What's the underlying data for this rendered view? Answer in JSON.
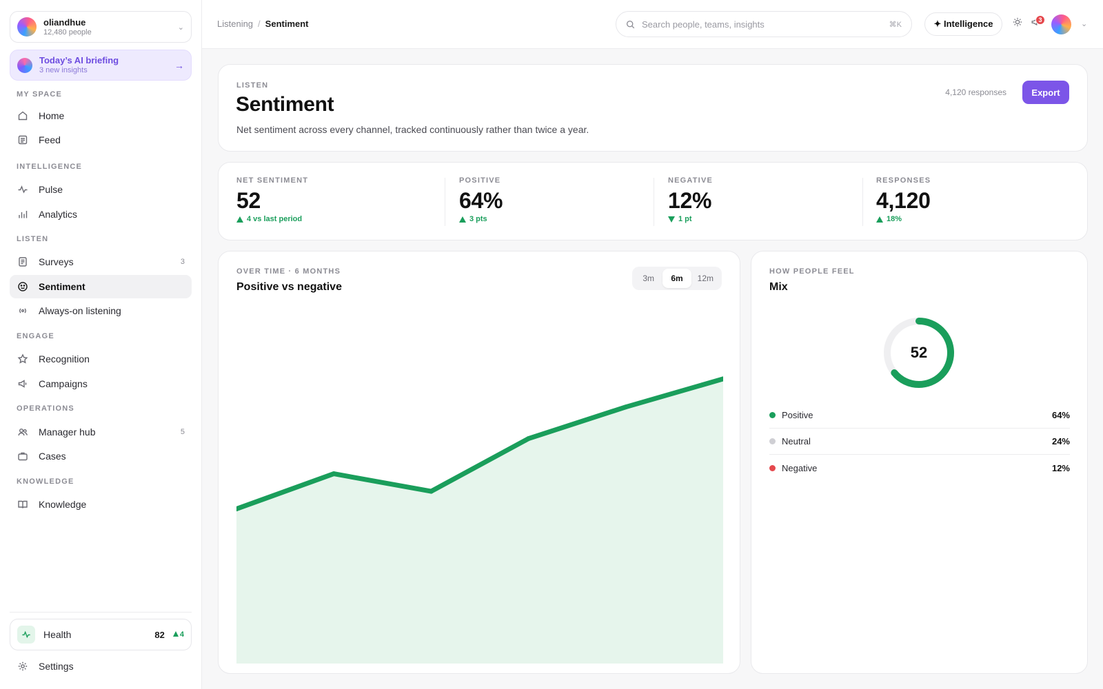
{
  "org": {
    "name": "oliandhue",
    "members": "12,480 people"
  },
  "briefing": {
    "title": "Today’s AI briefing",
    "subtitle": "3 new insights"
  },
  "sidebar": {
    "sections": [
      {
        "label": "MY SPACE"
      },
      {
        "label": "INTELLIGENCE"
      },
      {
        "label": "LISTEN"
      },
      {
        "label": "ENGAGE"
      },
      {
        "label": "OPERATIONS"
      },
      {
        "label": "KNOWLEDGE"
      }
    ],
    "items": [
      {
        "label": "Home",
        "icon": "home-icon"
      },
      {
        "label": "Feed",
        "icon": "feed-icon"
      },
      {
        "label": "Pulse",
        "icon": "pulse-icon"
      },
      {
        "label": "Analytics",
        "icon": "bar-chart-icon"
      },
      {
        "label": "Surveys",
        "icon": "clipboard-icon",
        "count": "3"
      },
      {
        "label": "Sentiment",
        "icon": "smile-icon",
        "active": true
      },
      {
        "label": "Always-on listening",
        "icon": "broadcast-icon"
      },
      {
        "label": "Recognition",
        "icon": "star-icon"
      },
      {
        "label": "Campaigns",
        "icon": "megaphone-icon"
      },
      {
        "label": "Manager hub",
        "icon": "users-icon",
        "count": "5"
      },
      {
        "label": "Cases",
        "icon": "briefcase-icon"
      },
      {
        "label": "Knowledge",
        "icon": "book-icon"
      }
    ],
    "health": {
      "label": "Health",
      "score": "82",
      "delta": "4"
    },
    "settings": {
      "label": "Settings",
      "icon": "gear-icon"
    }
  },
  "topbar": {
    "breadcrumb": {
      "parent": "Listening",
      "separator": "/",
      "current": "Sentiment"
    },
    "search": {
      "placeholder": "Search people, teams, insights",
      "shortcut": "⌘K"
    },
    "intelligence_label": "✦ Intelligence",
    "notifications_count": "3"
  },
  "header": {
    "eyebrow": "LISTEN",
    "title": "Sentiment",
    "description": "Net sentiment across every channel, tracked continuously rather than twice a year.",
    "responses_note": "4,120 responses",
    "export_label": "Export"
  },
  "kpis": [
    {
      "label": "NET SENTIMENT",
      "value": "52",
      "delta": "4 vs last period",
      "direction": "up"
    },
    {
      "label": "POSITIVE",
      "value": "64%",
      "delta": "3 pts",
      "direction": "up"
    },
    {
      "label": "NEGATIVE",
      "value": "12%",
      "delta": "1 pt",
      "direction": "down"
    },
    {
      "label": "RESPONSES",
      "value": "4,120",
      "delta": "18%",
      "direction": "up"
    }
  ],
  "trend": {
    "eyebrow": "OVER TIME · 6 MONTHS",
    "title": "Positive vs negative",
    "ranges": [
      "3m",
      "6m",
      "12m"
    ],
    "active_range": "6m"
  },
  "mix": {
    "eyebrow": "HOW PEOPLE FEEL",
    "title": "Mix",
    "center_value": "52",
    "legend": [
      {
        "label": "Positive",
        "value": "64%",
        "color": "#1a9e5b"
      },
      {
        "label": "Neutral",
        "value": "24%",
        "color": "#cfcfd4"
      },
      {
        "label": "Negative",
        "value": "12%",
        "color": "#e5484d"
      }
    ]
  },
  "colors": {
    "accent": "#7c55e8",
    "positive": "#1a9e5b",
    "negative": "#e5484d"
  },
  "chart_data": [
    {
      "type": "area",
      "title": "Positive vs negative",
      "x": [
        1,
        2,
        3,
        4,
        5,
        6
      ],
      "series": [
        {
          "values": [
            44,
            54,
            49,
            64,
            73,
            81
          ],
          "color": "#1a9e5b"
        }
      ],
      "ylim": [
        0,
        100
      ],
      "grid": false
    },
    {
      "type": "pie",
      "title": "Mix",
      "categories": [
        "Positive",
        "Neutral",
        "Negative"
      ],
      "values": [
        64,
        24,
        12
      ]
    }
  ]
}
